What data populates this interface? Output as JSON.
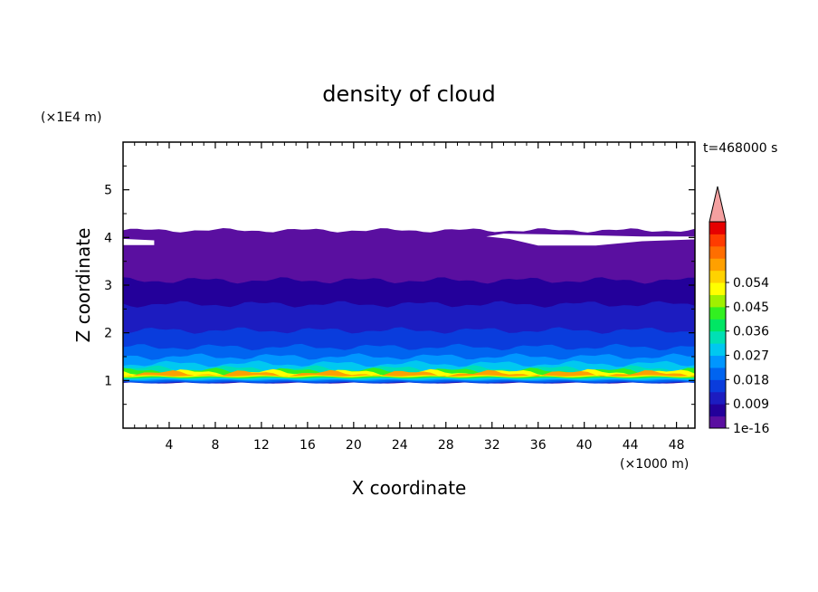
{
  "chart_data": {
    "type": "heatmap",
    "title": "density of cloud",
    "xlabel": "X coordinate",
    "ylabel": "Z coordinate",
    "x_unit": "(×1000 m)",
    "y_unit": "(×1E4 m)",
    "time_label": "t=468000 s",
    "xlim": [
      0,
      49.6
    ],
    "ylim": [
      0,
      6
    ],
    "x_ticks": [
      "4",
      "8",
      "12",
      "16",
      "20",
      "24",
      "28",
      "32",
      "36",
      "40",
      "44",
      "48"
    ],
    "x_tick_values": [
      4,
      8,
      12,
      16,
      20,
      24,
      28,
      32,
      36,
      40,
      44,
      48
    ],
    "y_ticks": [
      "1",
      "2",
      "3",
      "4",
      "5"
    ],
    "y_tick_values": [
      1,
      2,
      3,
      4,
      5
    ],
    "colorbar": {
      "tick_labels": [
        "1e-16",
        "0.009",
        "0.018",
        "0.027",
        "0.036",
        "0.045",
        "0.054"
      ],
      "colors": [
        "#5a0fa0",
        "#23009a",
        "#1c1cc0",
        "#0a3cdc",
        "#0064f0",
        "#0096ff",
        "#00c8f0",
        "#00e0b4",
        "#00e664",
        "#32f020",
        "#a0f000",
        "#ffff00",
        "#ffd200",
        "#ffa000",
        "#ff6e00",
        "#ff3c00",
        "#e60000"
      ],
      "extend_color": "#f4a0a0"
    },
    "layers": [
      {
        "level": "1e-16",
        "z_bottom": 0.95,
        "z_top": 4.15,
        "color": "#5a0fa0"
      },
      {
        "level": "0.003",
        "z_bottom": 0.95,
        "z_top": 3.1,
        "color": "#23009a"
      },
      {
        "level": "0.006",
        "z_bottom": 0.95,
        "z_top": 2.6,
        "color": "#1c1cc0"
      },
      {
        "level": "0.009",
        "z_bottom": 0.95,
        "z_top": 2.05,
        "color": "#0a3cdc"
      },
      {
        "level": "0.012",
        "z_bottom": 0.97,
        "z_top": 1.7,
        "color": "#0064f0"
      },
      {
        "level": "0.015",
        "z_bottom": 1.0,
        "z_top": 1.5,
        "color": "#0096ff"
      },
      {
        "level": "0.018",
        "z_bottom": 1.02,
        "z_top": 1.35,
        "color": "#00c8f0"
      },
      {
        "level": "0.021",
        "z_bottom": 1.04,
        "z_top": 1.25,
        "color": "#00e0b4"
      },
      {
        "level": "0.027",
        "z_bottom": 1.06,
        "z_top": 1.2,
        "color": "#32f020"
      },
      {
        "level": "0.036",
        "z_bottom": 1.08,
        "z_top": 1.17,
        "color": "#ffff00"
      },
      {
        "level": "0.045",
        "z_bottom": 1.1,
        "z_top": 1.15,
        "color": "#ffa000"
      }
    ]
  }
}
